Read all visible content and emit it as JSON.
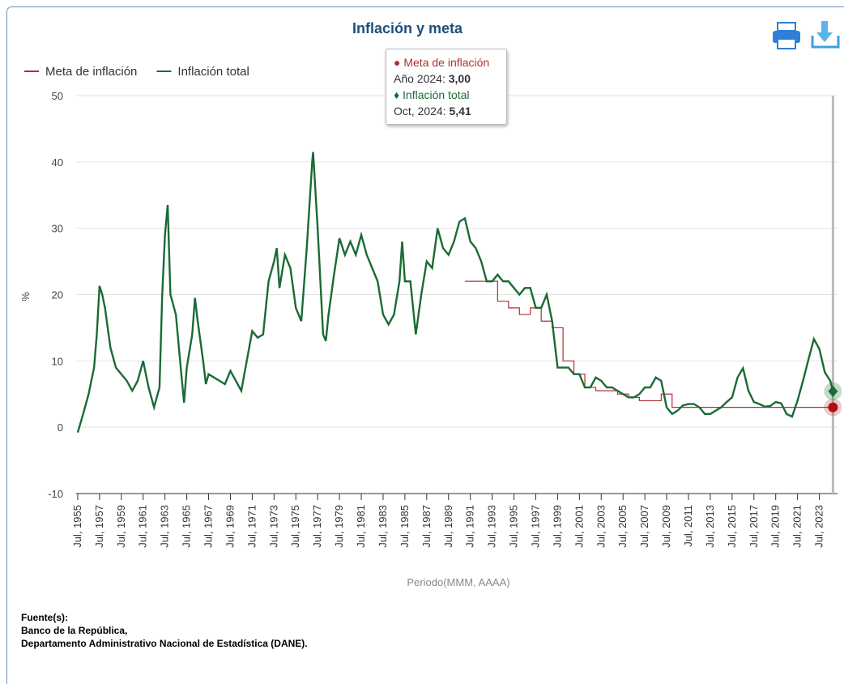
{
  "chart_data": {
    "type": "line",
    "title": "Inflación y meta",
    "ylabel": "%",
    "xlabel": "Periodo(MMM, AAAA)",
    "legend": "top-left",
    "grid": true,
    "ylim": [
      -10,
      50
    ],
    "yticks": [
      -10,
      0,
      10,
      20,
      30,
      40,
      50
    ],
    "xlim": [
      "1955-05",
      "2025-03"
    ],
    "xticks": [
      {
        "value": "1955-07",
        "label": "Jul, 1955"
      },
      {
        "value": "1957-07",
        "label": "Jul, 1957"
      },
      {
        "value": "1959-07",
        "label": "Jul, 1959"
      },
      {
        "value": "1961-07",
        "label": "Jul, 1961"
      },
      {
        "value": "1963-07",
        "label": "Jul, 1963"
      },
      {
        "value": "1965-07",
        "label": "Jul, 1965"
      },
      {
        "value": "1967-07",
        "label": "Jul, 1967"
      },
      {
        "value": "1969-07",
        "label": "Jul, 1969"
      },
      {
        "value": "1971-07",
        "label": "Jul, 1971"
      },
      {
        "value": "1973-07",
        "label": "Jul, 1973"
      },
      {
        "value": "1975-07",
        "label": "Jul, 1975"
      },
      {
        "value": "1977-07",
        "label": "Jul, 1977"
      },
      {
        "value": "1979-07",
        "label": "Jul, 1979"
      },
      {
        "value": "1981-07",
        "label": "Jul, 1981"
      },
      {
        "value": "1983-07",
        "label": "Jul, 1983"
      },
      {
        "value": "1985-07",
        "label": "Jul, 1985"
      },
      {
        "value": "1987-07",
        "label": "Jul, 1987"
      },
      {
        "value": "1989-07",
        "label": "Jul, 1989"
      },
      {
        "value": "1991-07",
        "label": "Jul, 1991"
      },
      {
        "value": "1993-07",
        "label": "Jul, 1993"
      },
      {
        "value": "1995-07",
        "label": "Jul, 1995"
      },
      {
        "value": "1997-07",
        "label": "Jul, 1997"
      },
      {
        "value": "1999-07",
        "label": "Jul, 1999"
      },
      {
        "value": "2001-07",
        "label": "Jul, 2001"
      },
      {
        "value": "2003-07",
        "label": "Jul, 2003"
      },
      {
        "value": "2005-07",
        "label": "Jul, 2005"
      },
      {
        "value": "2007-07",
        "label": "Jul, 2007"
      },
      {
        "value": "2009-07",
        "label": "Jul, 2009"
      },
      {
        "value": "2011-07",
        "label": "Jul, 2011"
      },
      {
        "value": "2013-07",
        "label": "Jul, 2013"
      },
      {
        "value": "2015-07",
        "label": "Jul, 2015"
      },
      {
        "value": "2017-07",
        "label": "Jul, 2017"
      },
      {
        "value": "2019-07",
        "label": "Jul, 2019"
      },
      {
        "value": "2021-07",
        "label": "Jul, 2021"
      },
      {
        "value": "2023-07",
        "label": "Jul, 2023"
      }
    ],
    "series": [
      {
        "name": "Meta de inflación",
        "color": "#b03030",
        "step": true,
        "x": [
          "1991",
          "1992",
          "1993",
          "1994",
          "1995",
          "1996",
          "1997",
          "1998",
          "1999",
          "2000",
          "2001",
          "2002",
          "2003",
          "2004",
          "2005",
          "2006",
          "2007",
          "2008",
          "2009",
          "2010",
          "2011",
          "2012",
          "2013",
          "2014",
          "2015",
          "2016",
          "2017",
          "2018",
          "2019",
          "2020",
          "2021",
          "2022",
          "2023",
          "2024"
        ],
        "values": [
          22,
          22,
          22,
          19,
          18,
          17,
          18,
          16,
          15,
          10,
          8,
          6,
          5.5,
          5.5,
          5,
          4.5,
          4,
          4,
          5,
          3,
          3,
          3,
          3,
          3,
          3,
          3,
          3,
          3,
          3,
          3,
          3,
          3,
          3,
          3
        ]
      },
      {
        "name": "Inflación total",
        "color": "#1a6b35",
        "step": false,
        "x": [
          "1955-07",
          "1956-01",
          "1956-07",
          "1957-01",
          "1957-04",
          "1957-07",
          "1957-10",
          "1958-01",
          "1958-07",
          "1959-01",
          "1959-07",
          "1960-01",
          "1960-07",
          "1961-01",
          "1961-07",
          "1962-01",
          "1962-07",
          "1963-01",
          "1963-04",
          "1963-07",
          "1963-10",
          "1964-01",
          "1964-07",
          "1965-01",
          "1965-04",
          "1965-07",
          "1966-01",
          "1966-04",
          "1966-07",
          "1967-01",
          "1967-04",
          "1967-07",
          "1968-01",
          "1968-07",
          "1969-01",
          "1969-07",
          "1970-01",
          "1970-07",
          "1971-01",
          "1971-07",
          "1972-01",
          "1972-07",
          "1973-01",
          "1973-07",
          "1973-10",
          "1974-01",
          "1974-07",
          "1975-01",
          "1975-07",
          "1976-01",
          "1976-07",
          "1977-01",
          "1977-02",
          "1977-07",
          "1978-01",
          "1978-04",
          "1978-07",
          "1979-01",
          "1979-07",
          "1980-01",
          "1980-07",
          "1981-01",
          "1981-07",
          "1982-01",
          "1982-07",
          "1983-01",
          "1983-07",
          "1984-01",
          "1984-07",
          "1985-01",
          "1985-04",
          "1985-07",
          "1986-01",
          "1986-07",
          "1987-01",
          "1987-07",
          "1988-01",
          "1988-07",
          "1989-01",
          "1989-07",
          "1990-01",
          "1990-07",
          "1991-01",
          "1991-07",
          "1992-01",
          "1992-07",
          "1993-01",
          "1993-07",
          "1994-01",
          "1994-07",
          "1995-01",
          "1995-07",
          "1996-01",
          "1996-07",
          "1997-01",
          "1997-07",
          "1998-01",
          "1998-07",
          "1999-01",
          "1999-07",
          "2000-01",
          "2000-07",
          "2001-01",
          "2001-07",
          "2002-01",
          "2002-07",
          "2003-01",
          "2003-07",
          "2004-01",
          "2004-07",
          "2005-01",
          "2005-07",
          "2006-01",
          "2006-07",
          "2007-01",
          "2007-07",
          "2008-01",
          "2008-07",
          "2009-01",
          "2009-07",
          "2010-01",
          "2010-07",
          "2011-01",
          "2011-07",
          "2012-01",
          "2012-07",
          "2013-01",
          "2013-07",
          "2014-01",
          "2014-07",
          "2015-01",
          "2015-07",
          "2016-01",
          "2016-07",
          "2017-01",
          "2017-07",
          "2018-01",
          "2018-07",
          "2019-01",
          "2019-07",
          "2020-01",
          "2020-07",
          "2021-01",
          "2021-07",
          "2022-01",
          "2022-07",
          "2023-01",
          "2023-07",
          "2024-01",
          "2024-07",
          "2024-10"
        ],
        "values": [
          -0.8,
          2,
          5,
          9,
          14,
          21.3,
          20,
          18,
          12,
          9,
          8,
          7,
          5.5,
          7,
          10,
          6,
          3,
          6,
          20,
          29,
          33.5,
          20,
          17,
          8,
          3.7,
          9,
          14,
          19.5,
          16,
          10,
          6.5,
          8,
          7.5,
          7,
          6.5,
          8.5,
          7,
          5.5,
          10,
          14.5,
          13.5,
          14,
          22,
          25,
          27,
          21,
          26,
          24,
          18,
          16,
          27,
          40,
          41.5,
          30,
          14,
          13,
          17,
          23,
          28.5,
          26,
          28,
          26,
          29,
          26,
          24,
          22,
          17,
          15.5,
          17,
          22,
          28,
          22,
          22,
          14,
          20,
          25,
          24,
          30,
          27,
          26,
          28,
          31,
          31.5,
          28,
          27,
          25,
          22,
          22,
          23,
          22,
          22,
          21,
          20,
          21,
          21,
          18,
          18,
          20,
          16,
          9,
          9,
          9,
          8,
          8,
          6,
          6,
          7.5,
          7,
          6,
          6,
          5.5,
          5,
          4.5,
          4.5,
          5,
          6,
          6,
          7.5,
          7,
          3,
          2,
          2.5,
          3.3,
          3.5,
          3.5,
          3,
          2,
          2,
          2.5,
          3,
          3.8,
          4.5,
          7.5,
          8.9,
          5.5,
          3.8,
          3.5,
          3.1,
          3.2,
          3.8,
          3.6,
          2,
          1.6,
          4,
          7,
          10.2,
          13.3,
          11.8,
          8.3,
          7,
          5.41
        ]
      }
    ],
    "tooltip": [
      {
        "x_label": "Año 2024:",
        "value_label": "3,00"
      },
      {
        "x_label": "Oct, 2024:",
        "value_label": "5,41"
      }
    ],
    "source": [
      "Fuente(s):",
      "Banco de la República,",
      "Departamento Administrativo Nacional de Estadística (DANE)."
    ]
  }
}
